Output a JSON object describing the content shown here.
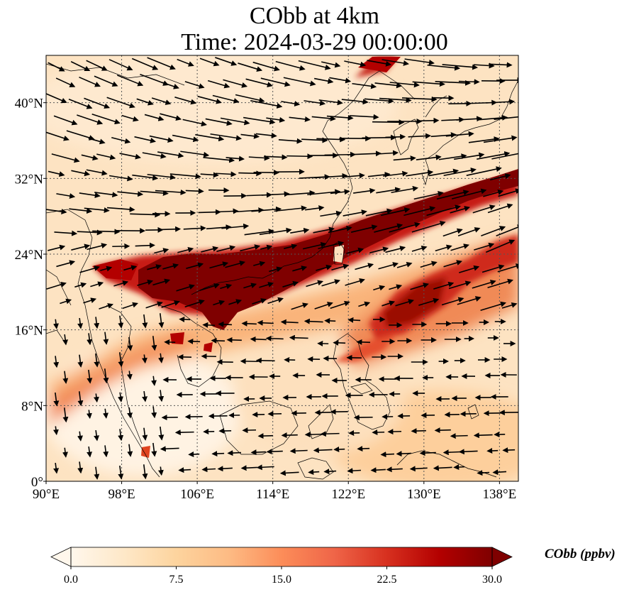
{
  "title_line1": "CObb at 4km",
  "title_line2": "Time: 2024-03-29 00:00:00",
  "map": {
    "extent": {
      "lon": [
        90,
        140
      ],
      "lat": [
        0,
        45
      ]
    },
    "x_ticks": [
      {
        "lon": 90,
        "label": "90°E"
      },
      {
        "lon": 98,
        "label": "98°E"
      },
      {
        "lon": 106,
        "label": "106°E"
      },
      {
        "lon": 114,
        "label": "114°E"
      },
      {
        "lon": 122,
        "label": "122°E"
      },
      {
        "lon": 130,
        "label": "130°E"
      },
      {
        "lon": 138,
        "label": "138°E"
      }
    ],
    "y_ticks": [
      {
        "lat": 0,
        "label": "0°"
      },
      {
        "lat": 8,
        "label": "8°N"
      },
      {
        "lat": 16,
        "label": "16°N"
      },
      {
        "lat": 24,
        "label": "24°N"
      },
      {
        "lat": 32,
        "label": "32°N"
      },
      {
        "lat": 40,
        "label": "40°N"
      }
    ],
    "gridlines": true,
    "gridline_style": "dotted"
  },
  "colorbar": {
    "label": "CObb (ppbv)",
    "ticks": [
      "0.0",
      "7.5",
      "15.0",
      "22.5",
      "30.0"
    ],
    "range": [
      0,
      30
    ],
    "colormap": "OrRd",
    "colors": [
      "#fff7ec",
      "#fee8c8",
      "#fdd49e",
      "#fdbb84",
      "#fc8d59",
      "#ef6548",
      "#d7301f",
      "#b30000",
      "#7f0000"
    ],
    "extend": "both"
  }
}
